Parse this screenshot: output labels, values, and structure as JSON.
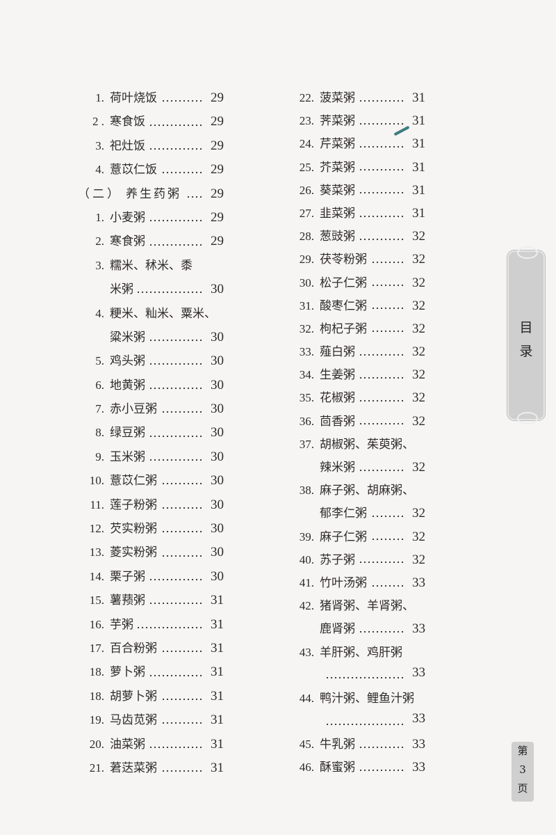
{
  "left_column": [
    {
      "num": "1.",
      "text": "荷叶烧饭",
      "page": "29"
    },
    {
      "num": "2 .",
      "text": "寒食饭",
      "page": "29"
    },
    {
      "num": "3.",
      "text": "祀灶饭",
      "page": "29"
    },
    {
      "num": "4.",
      "text": "薏苡仁饭",
      "page": "29"
    },
    {
      "section": "（二）",
      "text": "养生药粥",
      "page": "29"
    },
    {
      "num": "1.",
      "text": "小麦粥",
      "page": "29"
    },
    {
      "num": "2.",
      "text": "寒食粥",
      "page": "29"
    },
    {
      "num": "3.",
      "text": "糯米、秫米、黍",
      "cont": true
    },
    {
      "text": "米粥",
      "page": "30",
      "continuation": true
    },
    {
      "num": "4.",
      "text": "粳米、籼米、粟米、",
      "cont": true
    },
    {
      "text": "粱米粥",
      "page": "30",
      "continuation": true
    },
    {
      "num": "5.",
      "text": "鸡头粥",
      "page": "30"
    },
    {
      "num": "6.",
      "text": "地黄粥",
      "page": "30"
    },
    {
      "num": "7.",
      "text": "赤小豆粥",
      "page": "30"
    },
    {
      "num": "8.",
      "text": "绿豆粥",
      "page": "30"
    },
    {
      "num": "9.",
      "text": "玉米粥",
      "page": "30"
    },
    {
      "num": "10.",
      "text": "薏苡仁粥",
      "page": "30"
    },
    {
      "num": "11.",
      "text": "莲子粉粥",
      "page": "30"
    },
    {
      "num": "12.",
      "text": "芡实粉粥",
      "page": "30"
    },
    {
      "num": "13.",
      "text": "菱实粉粥",
      "page": "30"
    },
    {
      "num": "14.",
      "text": "栗子粥",
      "page": "30"
    },
    {
      "num": "15.",
      "text": "薯蓣粥",
      "page": "31"
    },
    {
      "num": "16.",
      "text": "芋粥",
      "page": "31"
    },
    {
      "num": "17.",
      "text": "百合粉粥",
      "page": "31"
    },
    {
      "num": "18.",
      "text": "萝卜粥",
      "page": "31"
    },
    {
      "num": "18.",
      "text": "胡萝卜粥",
      "page": "31"
    },
    {
      "num": "19.",
      "text": "马齿苋粥",
      "page": "31"
    },
    {
      "num": "20.",
      "text": "油菜粥",
      "page": "31"
    },
    {
      "num": "21.",
      "text": "莙荙菜粥",
      "page": "31"
    }
  ],
  "right_column": [
    {
      "num": "22.",
      "text": "菠菜粥",
      "page": "31"
    },
    {
      "num": "23.",
      "text": "荠菜粥",
      "page": "31"
    },
    {
      "num": "24.",
      "text": "芹菜粥",
      "page": "31"
    },
    {
      "num": "25.",
      "text": "芥菜粥",
      "page": "31"
    },
    {
      "num": "26.",
      "text": "葵菜粥",
      "page": "31"
    },
    {
      "num": "27.",
      "text": "韭菜粥",
      "page": "31"
    },
    {
      "num": "28.",
      "text": "葱豉粥",
      "page": "32"
    },
    {
      "num": "29.",
      "text": "茯苓粉粥",
      "page": "32"
    },
    {
      "num": "30.",
      "text": "松子仁粥",
      "page": "32"
    },
    {
      "num": "31.",
      "text": "酸枣仁粥",
      "page": "32"
    },
    {
      "num": "32.",
      "text": "枸杞子粥",
      "page": "32"
    },
    {
      "num": "33.",
      "text": "薤白粥",
      "page": "32"
    },
    {
      "num": "34.",
      "text": "生姜粥",
      "page": "32"
    },
    {
      "num": "35.",
      "text": "花椒粥",
      "page": "32"
    },
    {
      "num": "36.",
      "text": "茴香粥",
      "page": "32"
    },
    {
      "num": "37.",
      "text": "胡椒粥、茱萸粥、",
      "cont": true
    },
    {
      "text": "辣米粥",
      "page": "32",
      "continuation": true
    },
    {
      "num": "38.",
      "text": "麻子粥、胡麻粥、",
      "cont": true
    },
    {
      "text": "郁李仁粥",
      "page": "32",
      "continuation": true
    },
    {
      "num": "39.",
      "text": "麻子仁粥",
      "page": "32"
    },
    {
      "num": "40.",
      "text": "苏子粥",
      "page": "32"
    },
    {
      "num": "41.",
      "text": "竹叶汤粥",
      "page": "33"
    },
    {
      "num": "42.",
      "text": "猪肾粥、羊肾粥、",
      "cont": true
    },
    {
      "text": "鹿肾粥",
      "page": "33",
      "continuation": true
    },
    {
      "num": "43.",
      "text": "羊肝粥、鸡肝粥",
      "cont": true
    },
    {
      "text": "",
      "page": "33",
      "continuation": true
    },
    {
      "num": "44.",
      "text": "鸭汁粥、鲤鱼汁粥",
      "cont": true
    },
    {
      "text": "",
      "page": "33",
      "continuation": true
    },
    {
      "num": "45.",
      "text": "牛乳粥",
      "page": "33"
    },
    {
      "num": "46.",
      "text": "酥蜜粥",
      "page": "33"
    }
  ],
  "side_tab": {
    "line1": "目",
    "line2": "录"
  },
  "page_number": {
    "prefix": "第",
    "number": "3",
    "suffix": "页"
  },
  "colors": {
    "paper": "#f6f5f3",
    "text": "#2e2b2a",
    "tab": "#cfcfcf",
    "pen_mark": "#3d7c80"
  }
}
